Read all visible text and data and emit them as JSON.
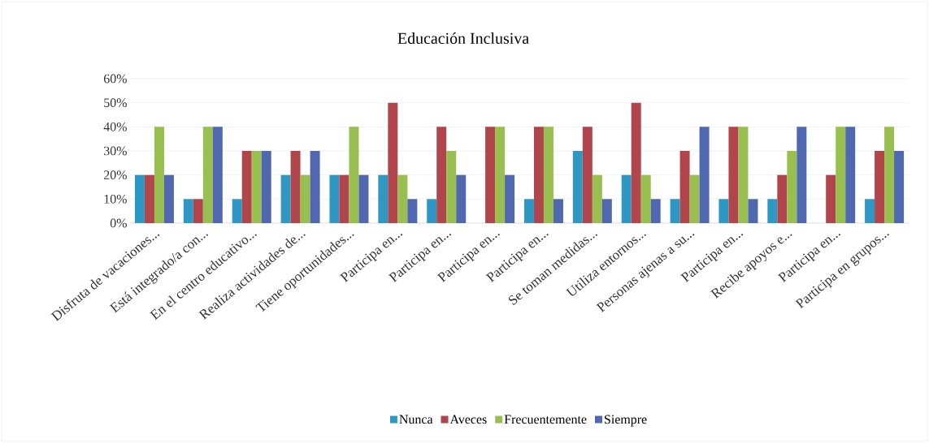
{
  "chart_data": {
    "type": "bar",
    "title": "Educación Inclusiva",
    "categories": [
      "Disfruta de vacaciones...",
      "Está integrado/a con...",
      "En el centro educativo...",
      "Realiza actividades de...",
      "Tiene oportunidades...",
      "Participa en...",
      "Participa en...",
      "Participa en...",
      "Participa en...",
      "Se toman medidas...",
      "Utiliza entornos...",
      "Personas ajenas a su...",
      "Participa en...",
      "Recibe apoyos e...",
      "Participa en...",
      "Participa en grupos..."
    ],
    "series": [
      {
        "name": "Nunca",
        "color": "#2f97c4",
        "values": [
          20,
          10,
          10,
          20,
          20,
          20,
          10,
          0,
          10,
          30,
          20,
          10,
          10,
          10,
          0,
          10
        ]
      },
      {
        "name": "Aveces",
        "color": "#b0454c",
        "values": [
          20,
          10,
          30,
          30,
          20,
          50,
          40,
          40,
          40,
          40,
          50,
          30,
          40,
          20,
          20,
          30
        ]
      },
      {
        "name": "Frecuentemente",
        "color": "#98bf50",
        "values": [
          40,
          40,
          30,
          20,
          40,
          20,
          30,
          40,
          40,
          20,
          20,
          20,
          40,
          30,
          40,
          40
        ]
      },
      {
        "name": "Siempre",
        "color": "#5068b0",
        "values": [
          20,
          40,
          30,
          30,
          20,
          10,
          20,
          20,
          10,
          10,
          10,
          40,
          10,
          40,
          40,
          30
        ]
      }
    ],
    "ylim": [
      0,
      60
    ],
    "yticks": [
      {
        "value": 0,
        "label": "0%"
      },
      {
        "value": 10,
        "label": "10%"
      },
      {
        "value": 20,
        "label": "20%"
      },
      {
        "value": 30,
        "label": "30%"
      },
      {
        "value": 40,
        "label": "40%"
      },
      {
        "value": 50,
        "label": "50%"
      },
      {
        "value": 60,
        "label": "60%"
      }
    ],
    "grid": "y",
    "legend": "bottom"
  }
}
